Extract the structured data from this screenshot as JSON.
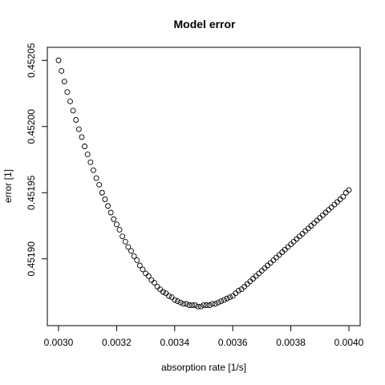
{
  "chart_data": {
    "type": "scatter",
    "title": "Model error",
    "xlabel": "absorption rate [1/s]",
    "ylabel": "error [1]",
    "xlim": [
      0.003,
      0.004
    ],
    "ylim": [
      0.451855,
      0.452055
    ],
    "xticks": [
      0.003,
      0.0032,
      0.0034,
      0.0036,
      0.0038,
      0.004
    ],
    "xtick_labels": [
      "0.0030",
      "0.0032",
      "0.0034",
      "0.0036",
      "0.0038",
      "0.0040"
    ],
    "yticks": [
      0.4519,
      0.45195,
      0.452,
      0.45205
    ],
    "ytick_labels": [
      "0.45190",
      "0.45195",
      "0.45200",
      "0.45205"
    ],
    "grid": false,
    "legend": "none",
    "series": [
      {
        "name": "error",
        "x": [
          0.003,
          0.00301,
          0.00302,
          0.00303,
          0.00304,
          0.00305,
          0.00306,
          0.00307,
          0.00308,
          0.00309,
          0.0031,
          0.00311,
          0.00312,
          0.00313,
          0.00314,
          0.00315,
          0.00316,
          0.00317,
          0.00318,
          0.00319,
          0.0032,
          0.00321,
          0.00322,
          0.00323,
          0.00324,
          0.00325,
          0.00326,
          0.00327,
          0.00328,
          0.00329,
          0.0033,
          0.00331,
          0.00332,
          0.00333,
          0.00334,
          0.00335,
          0.00336,
          0.00337,
          0.00338,
          0.00339,
          0.0034,
          0.00341,
          0.00342,
          0.00343,
          0.00344,
          0.00345,
          0.00346,
          0.00347,
          0.00348,
          0.00349,
          0.0035,
          0.00351,
          0.00352,
          0.00353,
          0.00354,
          0.00355,
          0.00356,
          0.00357,
          0.00358,
          0.00359,
          0.0036,
          0.00361,
          0.00362,
          0.00363,
          0.00364,
          0.00365,
          0.00366,
          0.00367,
          0.00368,
          0.00369,
          0.0037,
          0.00371,
          0.00372,
          0.00373,
          0.00374,
          0.00375,
          0.00376,
          0.00377,
          0.00378,
          0.00379,
          0.0038,
          0.00381,
          0.00382,
          0.00383,
          0.00384,
          0.00385,
          0.00386,
          0.00387,
          0.00388,
          0.00389,
          0.0039,
          0.00391,
          0.00392,
          0.00393,
          0.00394,
          0.00395,
          0.00396,
          0.00397,
          0.00398,
          0.00399,
          0.004
        ],
        "y": [
          0.45205,
          0.452042,
          0.452034,
          0.452026,
          0.452019,
          0.452012,
          0.452005,
          0.451998,
          0.451992,
          0.451985,
          0.451979,
          0.451973,
          0.451967,
          0.451961,
          0.451956,
          0.45195,
          0.451945,
          0.45194,
          0.451935,
          0.45193,
          0.451926,
          0.451922,
          0.451917,
          0.451913,
          0.451909,
          0.451906,
          0.451902,
          0.451899,
          0.451895,
          0.451892,
          0.451889,
          0.451887,
          0.451884,
          0.451882,
          0.451879,
          0.451877,
          0.451875,
          0.451874,
          0.451872,
          0.451871,
          0.451869,
          0.451868,
          0.451867,
          0.451866,
          0.451866,
          0.451865,
          0.451865,
          0.451865,
          0.451864,
          0.451864,
          0.451865,
          0.451865,
          0.451865,
          0.451866,
          0.451866,
          0.451867,
          0.451868,
          0.451869,
          0.45187,
          0.451871,
          0.451872,
          0.451874,
          0.451876,
          0.451877,
          0.451879,
          0.451881,
          0.451883,
          0.451885,
          0.451887,
          0.451889,
          0.451891,
          0.451893,
          0.451895,
          0.451897,
          0.451899,
          0.451901,
          0.451903,
          0.451905,
          0.451907,
          0.451909,
          0.451911,
          0.451913,
          0.451915,
          0.451917,
          0.451919,
          0.451921,
          0.451923,
          0.451925,
          0.451927,
          0.451929,
          0.451931,
          0.451933,
          0.451935,
          0.451937,
          0.451939,
          0.451941,
          0.451943,
          0.451945,
          0.451947,
          0.45195,
          0.451952
        ]
      }
    ]
  }
}
